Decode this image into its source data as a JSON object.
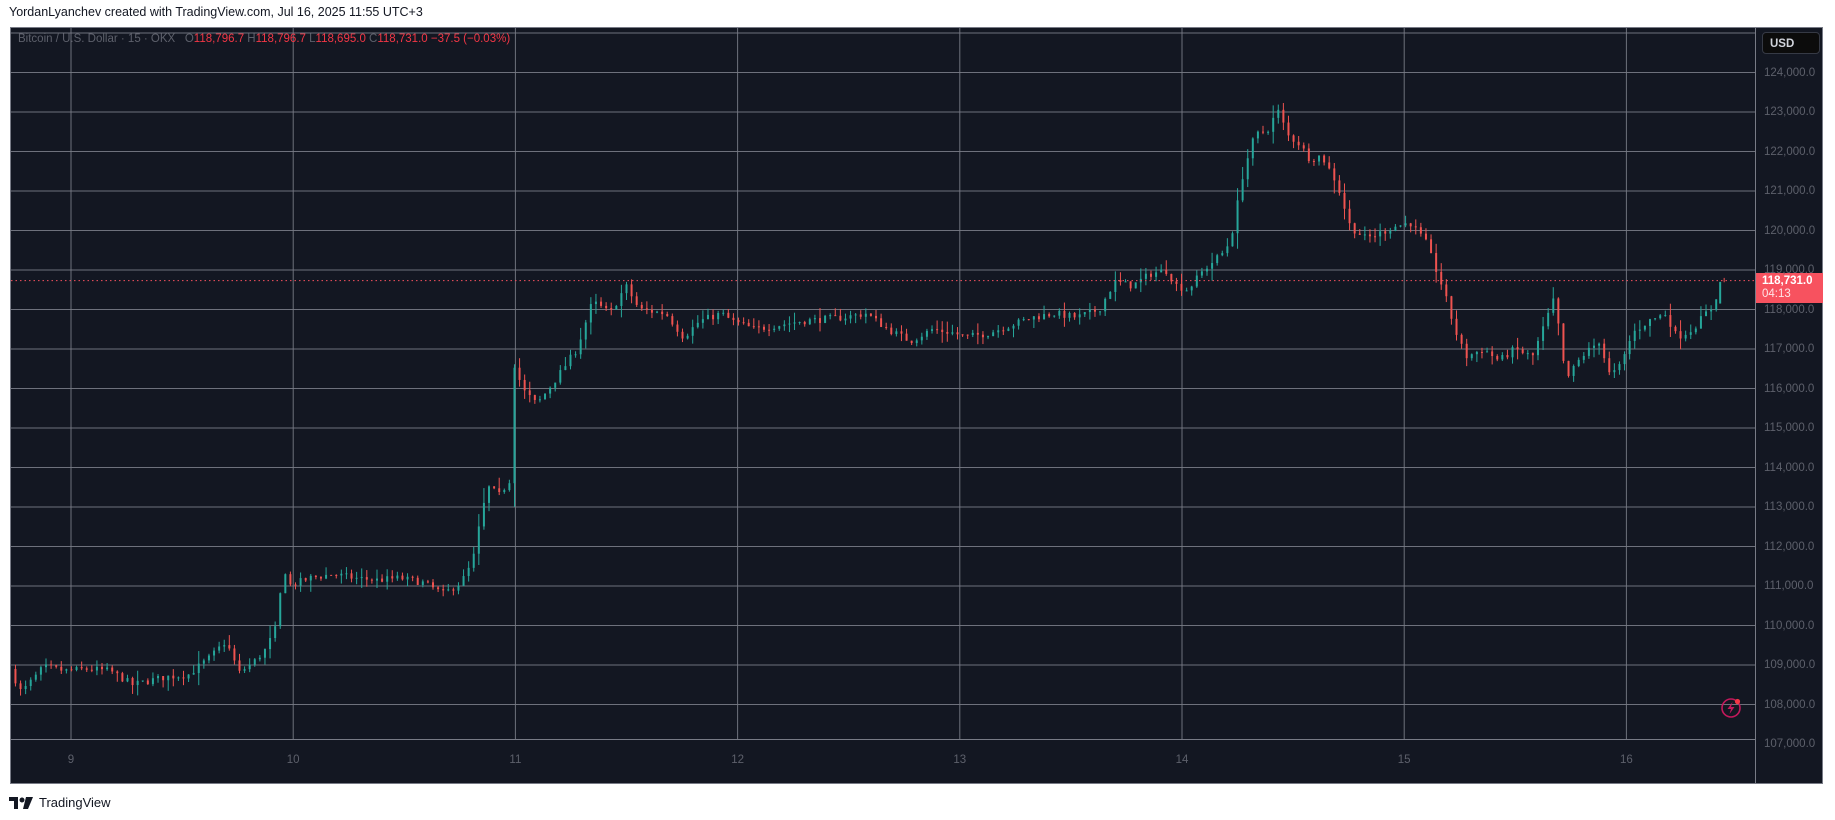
{
  "attribution": "YordanLyanchev created with TradingView.com, Jul 16, 2025 11:55 UTC+3",
  "legend": {
    "symbol": "Bitcoin / U.S. Dollar · 15 · OKX",
    "open_label": "O",
    "open": "118,796.7",
    "high_label": "H",
    "high": "118,796.7",
    "low_label": "L",
    "low": "118,695.0",
    "close_label": "C",
    "close": "118,731.0",
    "change": "−37.5 (−0.03%)"
  },
  "price_axis": {
    "currency_button": "USD",
    "last_price": "118,731.0",
    "countdown": "04:13"
  },
  "footer": {
    "brand": "TradingView"
  },
  "colors": {
    "background": "#131722",
    "grid": "#787b86",
    "up": "#26a69a",
    "down": "#ef5350",
    "last_price": "#f7525f",
    "axis_text": "#5d606b"
  },
  "chart_data": {
    "type": "candlestick",
    "title": "Bitcoin / U.S. Dollar · 15 · OKX",
    "xlabel": "",
    "ylabel": "USD",
    "x_ticks": [
      "9",
      "10",
      "11",
      "12",
      "13",
      "14",
      "15",
      "16"
    ],
    "y_ticks": [
      "107,000.0",
      "108,000.0",
      "109,000.0",
      "110,000.0",
      "111,000.0",
      "112,000.0",
      "113,000.0",
      "114,000.0",
      "115,000.0",
      "116,000.0",
      "117,000.0",
      "118,000.0",
      "119,000.0",
      "120,000.0",
      "121,000.0",
      "122,000.0",
      "123,000.0",
      "124,000.0"
    ],
    "ylim": [
      106800,
      125100
    ],
    "grid": true,
    "last_price": 118731.0,
    "price_path": [
      [
        8.75,
        108900
      ],
      [
        8.8,
        108300
      ],
      [
        8.9,
        108950
      ],
      [
        9.0,
        108850
      ],
      [
        9.1,
        108900
      ],
      [
        9.2,
        108850
      ],
      [
        9.3,
        108500
      ],
      [
        9.45,
        108700
      ],
      [
        9.55,
        108750
      ],
      [
        9.65,
        109200
      ],
      [
        9.72,
        109600
      ],
      [
        9.78,
        108800
      ],
      [
        9.85,
        109100
      ],
      [
        9.9,
        109400
      ],
      [
        9.95,
        110000
      ],
      [
        9.98,
        111600
      ],
      [
        10.0,
        111000
      ],
      [
        10.1,
        111200
      ],
      [
        10.2,
        111300
      ],
      [
        10.3,
        111200
      ],
      [
        10.4,
        111150
      ],
      [
        10.5,
        111200
      ],
      [
        10.6,
        111100
      ],
      [
        10.7,
        110800
      ],
      [
        10.78,
        111100
      ],
      [
        10.83,
        111600
      ],
      [
        10.87,
        112800
      ],
      [
        10.9,
        113500
      ],
      [
        10.95,
        113300
      ],
      [
        11.0,
        113700
      ],
      [
        11.02,
        116800
      ],
      [
        11.05,
        116000
      ],
      [
        11.12,
        115600
      ],
      [
        11.2,
        116200
      ],
      [
        11.3,
        117000
      ],
      [
        11.37,
        118200
      ],
      [
        11.45,
        117900
      ],
      [
        11.52,
        118600
      ],
      [
        11.58,
        118000
      ],
      [
        11.7,
        117900
      ],
      [
        11.78,
        117300
      ],
      [
        11.85,
        117700
      ],
      [
        11.95,
        117900
      ],
      [
        12.0,
        117700
      ],
      [
        12.1,
        117500
      ],
      [
        12.2,
        117600
      ],
      [
        12.3,
        117700
      ],
      [
        12.4,
        117750
      ],
      [
        12.5,
        117800
      ],
      [
        12.6,
        117900
      ],
      [
        12.7,
        117500
      ],
      [
        12.8,
        117200
      ],
      [
        12.9,
        117500
      ],
      [
        13.0,
        117400
      ],
      [
        13.05,
        117300
      ],
      [
        13.15,
        117400
      ],
      [
        13.25,
        117600
      ],
      [
        13.35,
        117800
      ],
      [
        13.45,
        117900
      ],
      [
        13.55,
        117800
      ],
      [
        13.65,
        118000
      ],
      [
        13.72,
        118700
      ],
      [
        13.8,
        118600
      ],
      [
        13.88,
        118900
      ],
      [
        13.95,
        119000
      ],
      [
        14.0,
        118600
      ],
      [
        14.05,
        118500
      ],
      [
        14.12,
        119000
      ],
      [
        14.18,
        119300
      ],
      [
        14.22,
        119500
      ],
      [
        14.25,
        120000
      ],
      [
        14.3,
        121500
      ],
      [
        14.35,
        122400
      ],
      [
        14.42,
        122600
      ],
      [
        14.45,
        123100
      ],
      [
        14.5,
        122400
      ],
      [
        14.55,
        122200
      ],
      [
        14.6,
        121800
      ],
      [
        14.65,
        121900
      ],
      [
        14.72,
        121200
      ],
      [
        14.78,
        120100
      ],
      [
        14.85,
        119800
      ],
      [
        14.9,
        119900
      ],
      [
        14.98,
        120100
      ],
      [
        15.05,
        120200
      ],
      [
        15.12,
        119700
      ],
      [
        15.2,
        118500
      ],
      [
        15.25,
        117500
      ],
      [
        15.3,
        116800
      ],
      [
        15.38,
        117000
      ],
      [
        15.45,
        116700
      ],
      [
        15.52,
        117000
      ],
      [
        15.6,
        116800
      ],
      [
        15.7,
        118300
      ],
      [
        15.75,
        116200
      ],
      [
        15.82,
        116800
      ],
      [
        15.9,
        117200
      ],
      [
        15.95,
        116300
      ],
      [
        16.0,
        116600
      ],
      [
        16.05,
        117400
      ],
      [
        16.12,
        117700
      ],
      [
        16.2,
        117900
      ],
      [
        16.25,
        117300
      ],
      [
        16.32,
        117500
      ],
      [
        16.38,
        117900
      ],
      [
        16.42,
        118100
      ],
      [
        16.44,
        118731
      ]
    ]
  }
}
